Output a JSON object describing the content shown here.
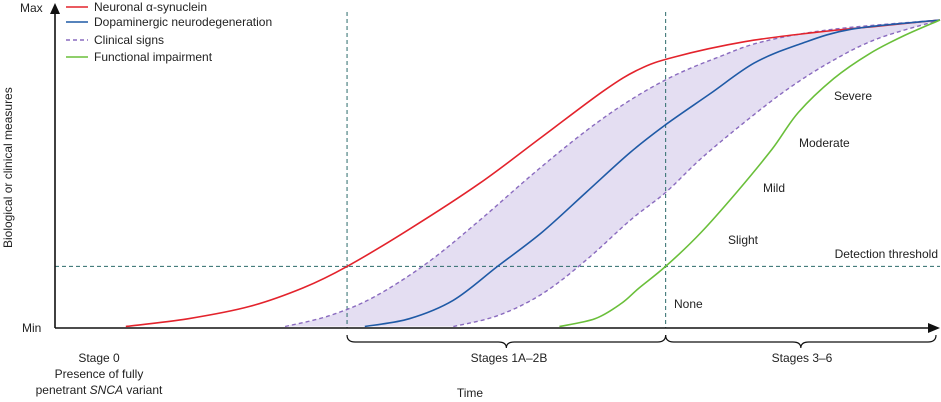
{
  "chart_data": {
    "type": "line",
    "xlabel": "Time",
    "ylabel": "Biological or clinical measures",
    "y_ticks": {
      "max": "Max",
      "min": "Min"
    },
    "legend_position": "top-left",
    "legend": [
      {
        "key": "asyn",
        "label": "Neuronal α-synuclein",
        "color": "#e3232c",
        "style": "solid"
      },
      {
        "key": "dopa",
        "label": "Dopaminergic neurodegeneration",
        "color": "#1f5aa6",
        "style": "solid"
      },
      {
        "key": "clin",
        "label": "Clinical signs",
        "color": "#8a6bbf",
        "style": "dashed"
      },
      {
        "key": "func",
        "label": "Functional impairment",
        "color": "#6abf3a",
        "style": "solid"
      }
    ],
    "xlim": [
      0,
      100
    ],
    "ylim": [
      0,
      100
    ],
    "detection_threshold": {
      "label": "Detection threshold",
      "y": 20
    },
    "stage_boundaries": [
      33,
      69
    ],
    "series": [
      {
        "key": "asyn",
        "points": [
          [
            8,
            0.5
          ],
          [
            15,
            3
          ],
          [
            22,
            7
          ],
          [
            28,
            13
          ],
          [
            33,
            20
          ],
          [
            40,
            32
          ],
          [
            48,
            47
          ],
          [
            55,
            62
          ],
          [
            62,
            77
          ],
          [
            66,
            84
          ],
          [
            70,
            88
          ],
          [
            78,
            93
          ],
          [
            86,
            96
          ],
          [
            93,
            98
          ],
          [
            100,
            100
          ]
        ]
      },
      {
        "key": "dopa",
        "points": [
          [
            35,
            0.5
          ],
          [
            40,
            3
          ],
          [
            45,
            9
          ],
          [
            50,
            20
          ],
          [
            55,
            31
          ],
          [
            60,
            44
          ],
          [
            65,
            57
          ],
          [
            69,
            66
          ],
          [
            74,
            76
          ],
          [
            79,
            86
          ],
          [
            84,
            92
          ],
          [
            90,
            97
          ],
          [
            100,
            100
          ]
        ]
      },
      {
        "key": "clin_upper",
        "points": [
          [
            26,
            0.5
          ],
          [
            31,
            4
          ],
          [
            36,
            10
          ],
          [
            42,
            21
          ],
          [
            48,
            35
          ],
          [
            54,
            50
          ],
          [
            60,
            64
          ],
          [
            65,
            74
          ],
          [
            70,
            82
          ],
          [
            75,
            88
          ],
          [
            80,
            93
          ],
          [
            88,
            97
          ],
          [
            100,
            100
          ]
        ]
      },
      {
        "key": "clin_lower",
        "points": [
          [
            45,
            0.5
          ],
          [
            50,
            4
          ],
          [
            55,
            11
          ],
          [
            60,
            22
          ],
          [
            65,
            35
          ],
          [
            69,
            44
          ],
          [
            73,
            55
          ],
          [
            78,
            67
          ],
          [
            83,
            78
          ],
          [
            88,
            87
          ],
          [
            93,
            94
          ],
          [
            100,
            100
          ]
        ]
      },
      {
        "key": "func",
        "points": [
          [
            57,
            0.5
          ],
          [
            61,
            3
          ],
          [
            64,
            8
          ],
          [
            66,
            13
          ],
          [
            69,
            20
          ],
          [
            73,
            31
          ],
          [
            77,
            44
          ],
          [
            81,
            58
          ],
          [
            84,
            70
          ],
          [
            88,
            81
          ],
          [
            92,
            89
          ],
          [
            96,
            95
          ],
          [
            100,
            100
          ]
        ]
      }
    ],
    "impairment_labels": [
      "None",
      "Slight",
      "Mild",
      "Moderate",
      "Severe"
    ],
    "stages": [
      {
        "label": "Stage 0",
        "lines": [
          "Presence of fully",
          "penetrant ",
          "SNCA",
          " variant"
        ]
      },
      {
        "label": "Stages 1A–2B"
      },
      {
        "label": "Stages 3–6"
      }
    ]
  }
}
